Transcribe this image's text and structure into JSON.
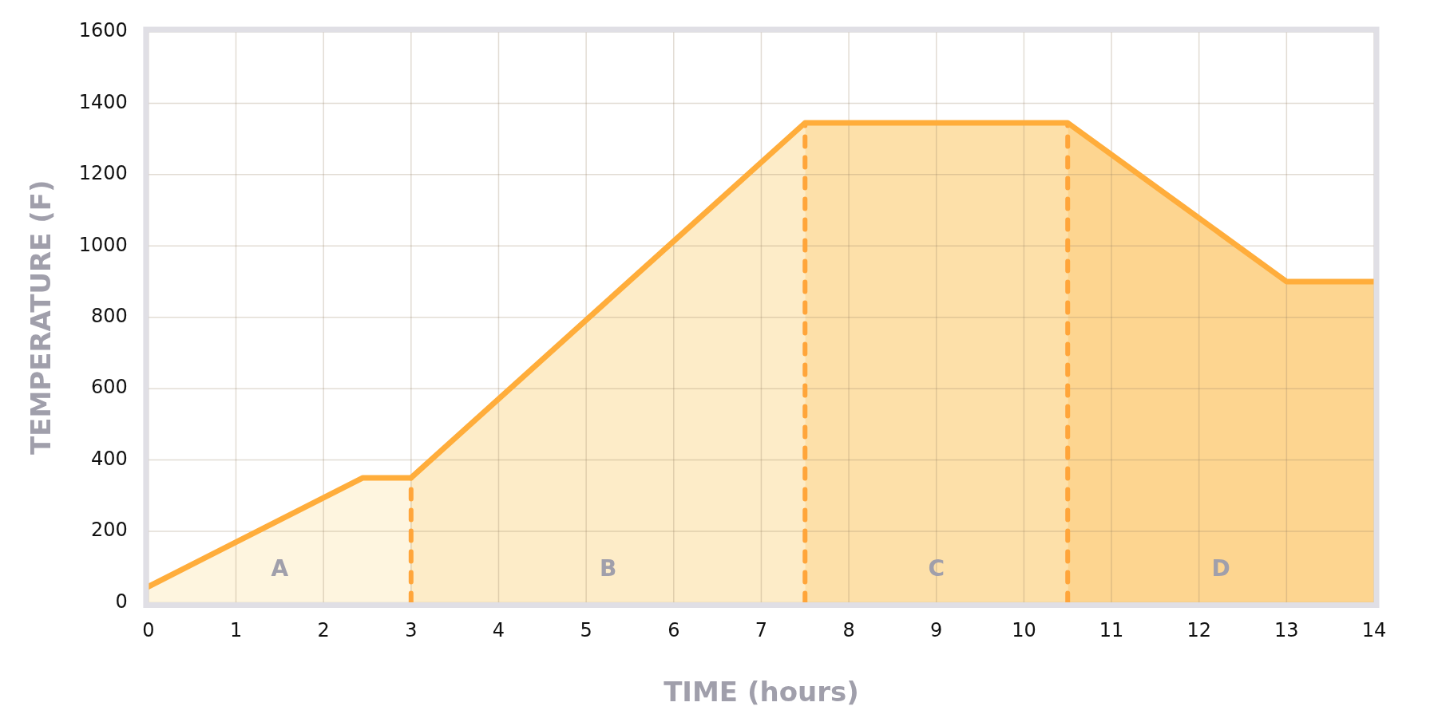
{
  "chart_data": {
    "type": "line",
    "xlabel": "TIME (hours)",
    "ylabel": "TEMPERATURE (F)",
    "x": [
      0,
      2.45,
      3,
      7.5,
      10.5,
      13,
      14
    ],
    "series": [
      {
        "color": "#ffad3b",
        "values": [
          45,
          350,
          350,
          1345,
          1345,
          900,
          900
        ]
      }
    ],
    "xlim": [
      0,
      14
    ],
    "xticks": [
      0,
      1,
      2,
      3,
      4,
      5,
      6,
      7,
      8,
      9,
      10,
      11,
      12,
      13,
      14
    ],
    "ylim": [
      0,
      1600
    ],
    "yticks": [
      0,
      200,
      400,
      600,
      800,
      1000,
      1200,
      1400,
      1600
    ],
    "grid": true,
    "legend": false,
    "marker": "none",
    "line_style": "solid",
    "bands": [
      {
        "axis": "x",
        "from": 0,
        "to": 3,
        "label": "A",
        "color": "#fef5df"
      },
      {
        "axis": "x",
        "from": 3,
        "to": 7.5,
        "label": "B",
        "color": "#fdecc8"
      },
      {
        "axis": "x",
        "from": 7.5,
        "to": 10.5,
        "label": "C",
        "color": "#fde0a9"
      },
      {
        "axis": "x",
        "from": 10.5,
        "to": 14,
        "label": "D",
        "color": "#fdd590"
      }
    ],
    "ref_lines": [
      {
        "axis": "x",
        "value": 3,
        "color": "#ffa53a",
        "line_style": "dashed"
      },
      {
        "axis": "x",
        "value": 7.5,
        "color": "#ffa53a",
        "line_style": "dashed"
      },
      {
        "axis": "x",
        "value": 10.5,
        "color": "#ffa53a",
        "line_style": "dashed"
      }
    ]
  }
}
